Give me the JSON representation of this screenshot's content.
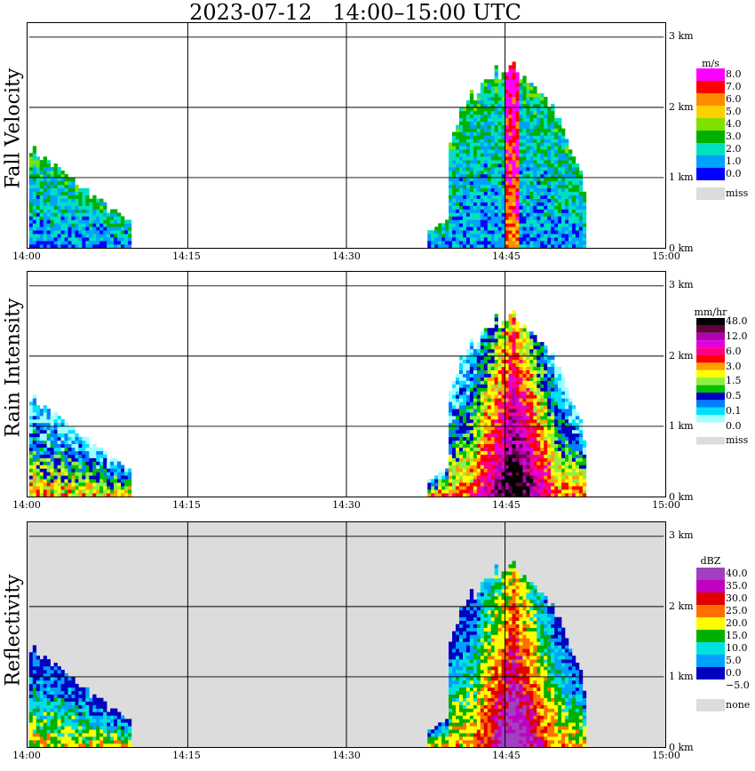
{
  "title": "2023-07-12   14:00–15:00 UTC",
  "x_ticks": [
    "14:00",
    "14:15",
    "14:30",
    "14:45",
    "15:00"
  ],
  "y_ticks": [
    "0 km",
    "1 km",
    "2 km",
    "3 km"
  ],
  "chart_data": [
    {
      "type": "heatmap",
      "ylabel": "Fall Velocity",
      "legend_unit": "m/s",
      "legend": [
        {
          "label": "8.0",
          "color": "#ff00ff"
        },
        {
          "label": "7.0",
          "color": "#ff0000"
        },
        {
          "label": "6.0",
          "color": "#ff8c00"
        },
        {
          "label": "5.0",
          "color": "#ffd000"
        },
        {
          "label": "4.0",
          "color": "#80e000"
        },
        {
          "label": "3.0",
          "color": "#00b000"
        },
        {
          "label": "2.0",
          "color": "#00e0c0"
        },
        {
          "label": "1.0",
          "color": "#00a0ff"
        },
        {
          "label": "0.0",
          "color": "#0000ff"
        },
        {
          "label": "miss",
          "color": "#dcdcdc"
        }
      ],
      "background": "#ffffff",
      "ylim": [
        0,
        3.2
      ]
    },
    {
      "type": "heatmap",
      "ylabel": "Rain Intensity",
      "legend_unit": "mm/hr",
      "legend": [
        {
          "label": "48.0",
          "color": "#000000"
        },
        {
          "label": "",
          "color": "#600040"
        },
        {
          "label": "12.0",
          "color": "#b000b0"
        },
        {
          "label": "",
          "color": "#e000e0"
        },
        {
          "label": "6.0",
          "color": "#ff0080"
        },
        {
          "label": "",
          "color": "#ff0000"
        },
        {
          "label": "3.0",
          "color": "#ffa000"
        },
        {
          "label": "",
          "color": "#ffff00"
        },
        {
          "label": "1.5",
          "color": "#90f040"
        },
        {
          "label": "",
          "color": "#00c000"
        },
        {
          "label": "0.5",
          "color": "#0000c0"
        },
        {
          "label": "",
          "color": "#0080ff"
        },
        {
          "label": "0.1",
          "color": "#00e0ff"
        },
        {
          "label": "",
          "color": "#a0ffff"
        },
        {
          "label": "0.0",
          "color": "#ffffff"
        },
        {
          "label": "miss",
          "color": "#dcdcdc"
        }
      ],
      "background": "#ffffff",
      "ylim": [
        0,
        3.2
      ]
    },
    {
      "type": "heatmap",
      "ylabel": "Reflectivity",
      "legend_unit": "dBZ",
      "legend": [
        {
          "label": "40.0",
          "color": "#a040c0"
        },
        {
          "label": "35.0",
          "color": "#c000c0"
        },
        {
          "label": "30.0",
          "color": "#e00000"
        },
        {
          "label": "25.0",
          "color": "#ff7000"
        },
        {
          "label": "20.0",
          "color": "#ffff00"
        },
        {
          "label": "15.0",
          "color": "#00b000"
        },
        {
          "label": "10.0",
          "color": "#00e0e0"
        },
        {
          "label": "5.0",
          "color": "#00a0ff"
        },
        {
          "label": "0.0",
          "color": "#0000c0"
        },
        {
          "label": "−5.0",
          "color": "#ffffff"
        },
        {
          "label": "none",
          "color": "#dcdcdc"
        }
      ],
      "background": "#dcdcdc",
      "ylim": [
        0,
        3.2
      ]
    }
  ]
}
